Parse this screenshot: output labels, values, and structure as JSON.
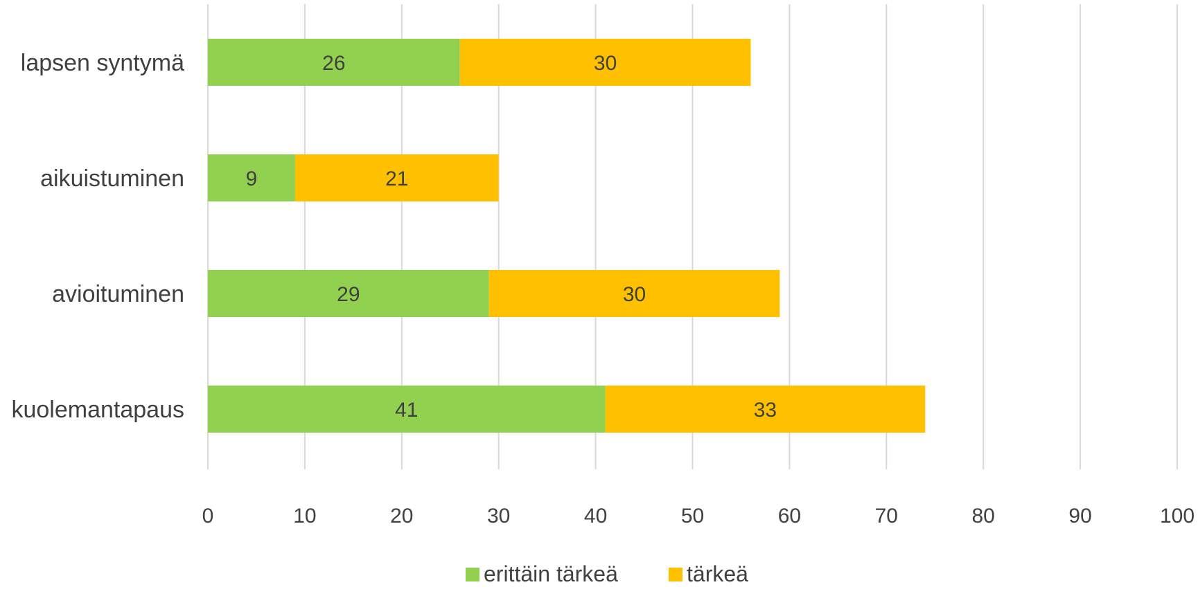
{
  "chart_data": {
    "type": "bar",
    "orientation": "horizontal",
    "stacked": true,
    "categories": [
      "lapsen syntymä",
      "aikuistuminen",
      "avioituminen",
      "kuolemantapaus"
    ],
    "series": [
      {
        "name": "erittäin tärkeä",
        "values": [
          26,
          9,
          29,
          41
        ],
        "color": "#92d050"
      },
      {
        "name": "tärkeä",
        "values": [
          30,
          21,
          30,
          33
        ],
        "color": "#ffc000"
      }
    ],
    "xlim": [
      0,
      100
    ],
    "xticks": [
      "0",
      "10",
      "20",
      "30",
      "40",
      "50",
      "60",
      "70",
      "80",
      "90",
      "100"
    ],
    "grid": true,
    "gridline_color": "#d9d9d9",
    "legend_position": "bottom",
    "data_labels": true
  }
}
